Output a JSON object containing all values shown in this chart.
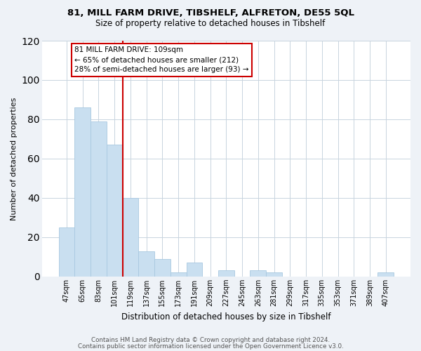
{
  "title1": "81, MILL FARM DRIVE, TIBSHELF, ALFRETON, DE55 5QL",
  "title2": "Size of property relative to detached houses in Tibshelf",
  "xlabel": "Distribution of detached houses by size in Tibshelf",
  "ylabel": "Number of detached properties",
  "bar_labels": [
    "47sqm",
    "65sqm",
    "83sqm",
    "101sqm",
    "119sqm",
    "137sqm",
    "155sqm",
    "173sqm",
    "191sqm",
    "209sqm",
    "227sqm",
    "245sqm",
    "263sqm",
    "281sqm",
    "299sqm",
    "317sqm",
    "335sqm",
    "353sqm",
    "371sqm",
    "389sqm",
    "407sqm"
  ],
  "bar_heights": [
    25,
    86,
    79,
    67,
    40,
    13,
    9,
    2,
    7,
    0,
    3,
    0,
    3,
    2,
    0,
    0,
    0,
    0,
    0,
    0,
    2
  ],
  "bar_color": "#c9dff0",
  "bar_edge_color": "#a8c8e0",
  "vline_x": 3.5,
  "vline_color": "#cc0000",
  "annotation_lines": [
    "81 MILL FARM DRIVE: 109sqm",
    "← 65% of detached houses are smaller (212)",
    "28% of semi-detached houses are larger (93) →"
  ],
  "annotation_box_edge": "#cc0000",
  "ylim": [
    0,
    120
  ],
  "yticks": [
    0,
    20,
    40,
    60,
    80,
    100,
    120
  ],
  "footer1": "Contains HM Land Registry data © Crown copyright and database right 2024.",
  "footer2": "Contains public sector information licensed under the Open Government Licence v3.0.",
  "bg_color": "#eef2f7",
  "plot_bg_color": "#ffffff",
  "grid_color": "#c8d4df"
}
